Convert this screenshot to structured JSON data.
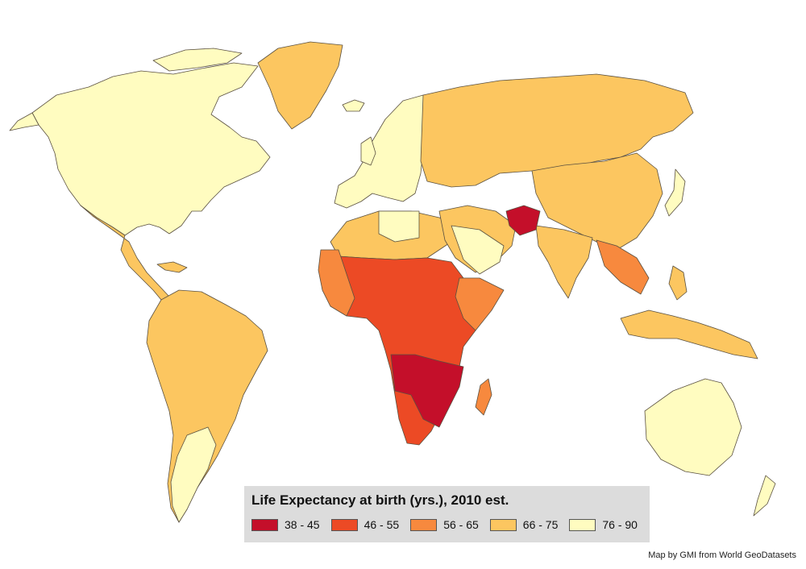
{
  "legend": {
    "title": "Life Expectancy at birth (yrs.), 2010 est.",
    "classes": [
      {
        "label": "38 - 45",
        "color": "#c40f2a"
      },
      {
        "label": "46 - 55",
        "color": "#ec4a25"
      },
      {
        "label": "56 - 65",
        "color": "#f7893e"
      },
      {
        "label": "66 - 75",
        "color": "#fcc660"
      },
      {
        "label": "76 - 90",
        "color": "#fffcc0"
      }
    ]
  },
  "credit": "Map by GMI from World GeoDatasets"
}
